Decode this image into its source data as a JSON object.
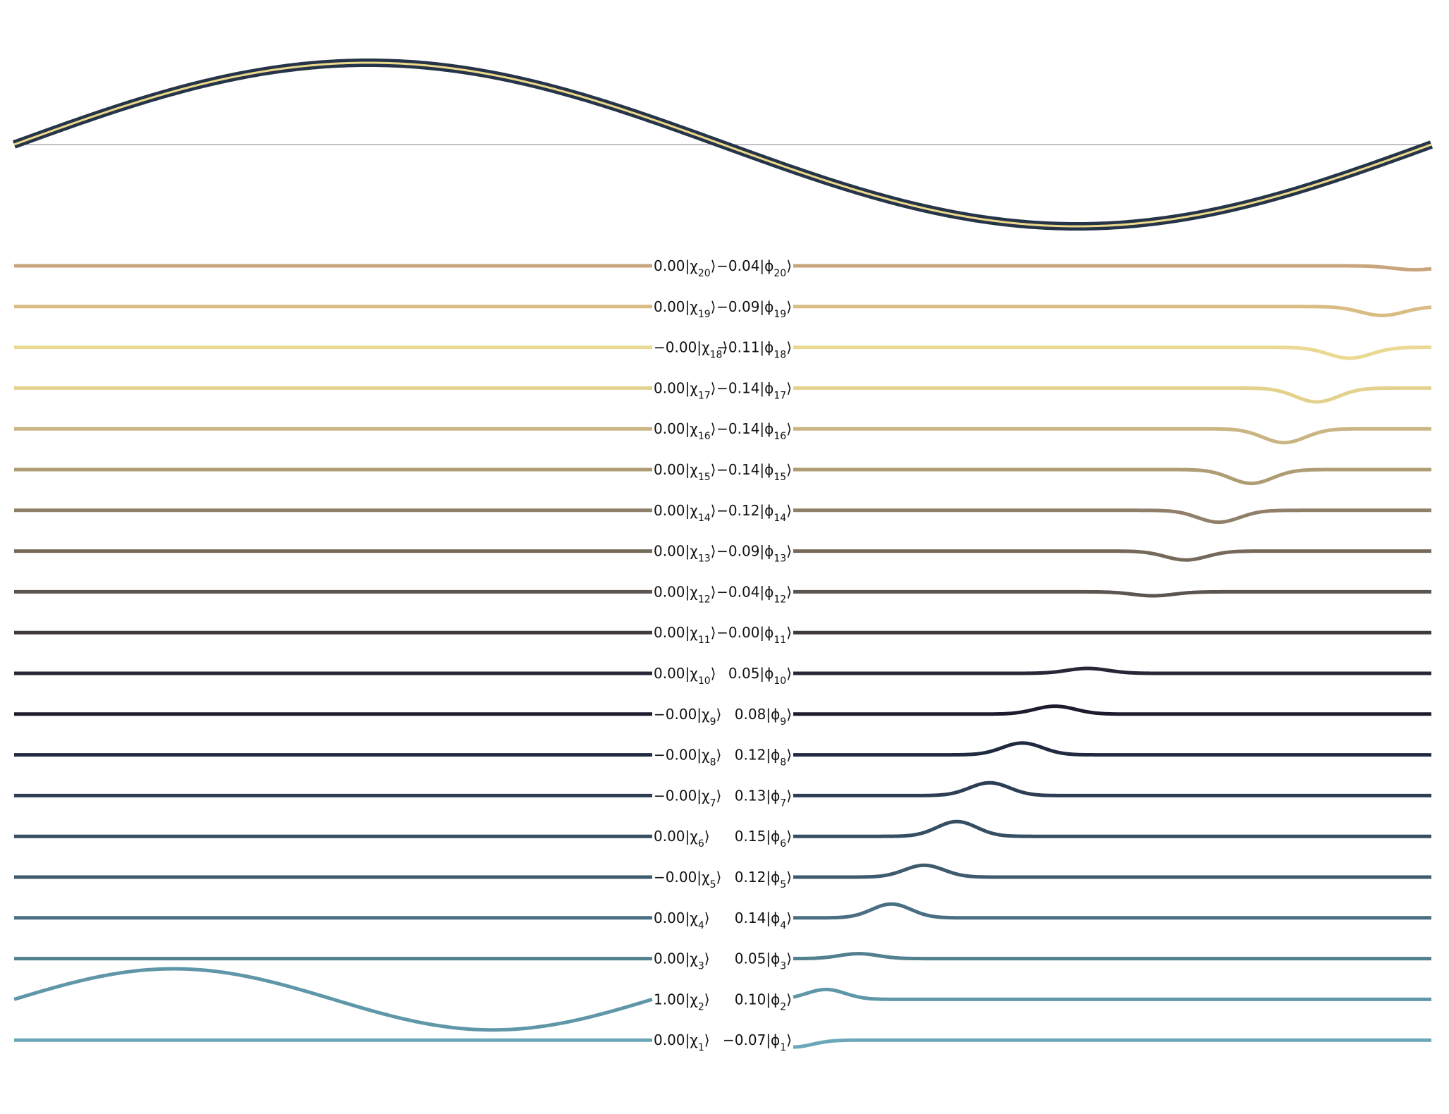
{
  "top_wave": {
    "outline_color": "#26344a",
    "inner_color": "#ecd98a",
    "baseline_color": "#c0c0c6",
    "cycles": 1
  },
  "rows": [
    {
      "k": "20",
      "chi": "0.00",
      "phi": "−0.04",
      "color": "#c8a57c",
      "amp": -0.04
    },
    {
      "k": "19",
      "chi": "0.00",
      "phi": "−0.09",
      "color": "#d9bc84",
      "amp": -0.09
    },
    {
      "k": "18",
      "chi": "−0.00",
      "phi": "−0.11",
      "color": "#ead993",
      "amp": -0.11
    },
    {
      "k": "17",
      "chi": "0.00",
      "phi": "−0.14",
      "color": "#e3d28e",
      "amp": -0.14
    },
    {
      "k": "16",
      "chi": "0.00",
      "phi": "−0.14",
      "color": "#c9b583",
      "amp": -0.14
    },
    {
      "k": "15",
      "chi": "0.00",
      "phi": "−0.14",
      "color": "#ae9c74",
      "amp": -0.14
    },
    {
      "k": "14",
      "chi": "0.00",
      "phi": "−0.12",
      "color": "#908069",
      "amp": -0.12
    },
    {
      "k": "13",
      "chi": "0.00",
      "phi": "−0.09",
      "color": "#75695a",
      "amp": -0.09
    },
    {
      "k": "12",
      "chi": "0.00",
      "phi": "−0.04",
      "color": "#5c5450",
      "amp": -0.04
    },
    {
      "k": "11",
      "chi": "0.00",
      "phi": "−0.00",
      "color": "#403a3c",
      "amp": 0.0
    },
    {
      "k": "10",
      "chi": "0.00",
      "phi": "0.05",
      "color": "#262636",
      "amp": 0.05
    },
    {
      "k": "9",
      "chi": "−0.00",
      "phi": "0.08",
      "color": "#1c1c2e",
      "amp": 0.08
    },
    {
      "k": "8",
      "chi": "−0.00",
      "phi": "0.12",
      "color": "#1f2a40",
      "amp": 0.12
    },
    {
      "k": "7",
      "chi": "−0.00",
      "phi": "0.13",
      "color": "#2c3d54",
      "amp": 0.13
    },
    {
      "k": "6",
      "chi": "0.00",
      "phi": "0.15",
      "color": "#354e62",
      "amp": 0.15
    },
    {
      "k": "5",
      "chi": "−0.00",
      "phi": "0.12",
      "color": "#3e5b6e",
      "amp": 0.12
    },
    {
      "k": "4",
      "chi": "0.00",
      "phi": "0.14",
      "color": "#4a6f82",
      "amp": 0.14
    },
    {
      "k": "3",
      "chi": "0.00",
      "phi": "0.05",
      "color": "#52808e",
      "amp": 0.05
    },
    {
      "k": "2",
      "chi": "1.00",
      "phi": "0.10",
      "color": "#5f97a8",
      "amp": 0.1
    },
    {
      "k": "1",
      "chi": "0.00",
      "phi": "−0.07",
      "color": "#6aa8b8",
      "amp": -0.07
    }
  ]
}
